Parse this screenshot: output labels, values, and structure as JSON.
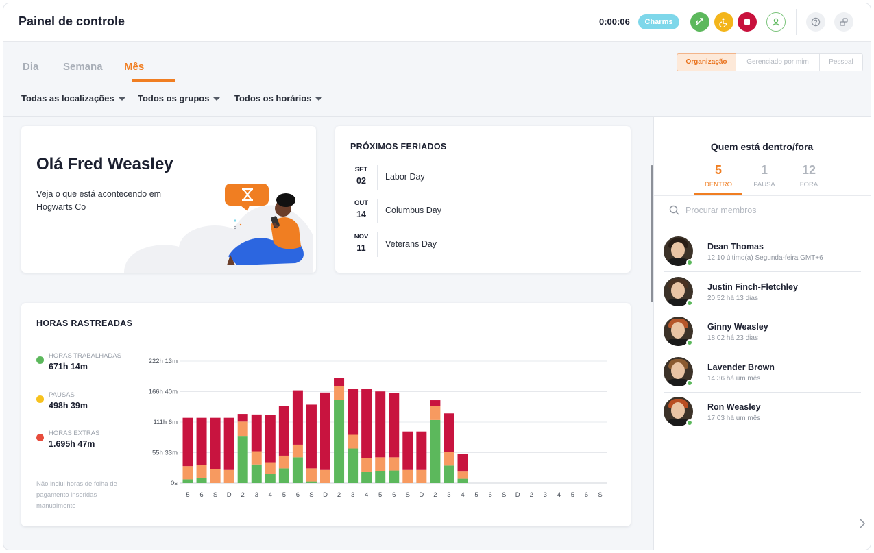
{
  "header": {
    "title": "Painel de controle",
    "timer": "0:00:06",
    "badge": "Charms"
  },
  "tabs": [
    {
      "label": "Dia"
    },
    {
      "label": "Semana"
    },
    {
      "label": "Mês",
      "active": true
    }
  ],
  "scope": [
    {
      "label": "Organização",
      "active": true
    },
    {
      "label": "Gerenciado por mim"
    },
    {
      "label": "Pessoal"
    }
  ],
  "filters": [
    {
      "label": "Todas as localizações"
    },
    {
      "label": "Todos os grupos"
    },
    {
      "label": "Todos os horários"
    }
  ],
  "greeting": {
    "title": "Olá Fred Weasley",
    "subtitle": "Veja o que está acontecendo em Hogwarts Co"
  },
  "holidays": {
    "title": "PRÓXIMOS FERIADOS",
    "items": [
      {
        "month": "SET",
        "day": "02",
        "name": "Labor Day"
      },
      {
        "month": "OUT",
        "day": "14",
        "name": "Columbus Day"
      },
      {
        "month": "NOV",
        "day": "11",
        "name": "Veterans Day"
      }
    ]
  },
  "hours": {
    "title": "HORAS RASTREADAS",
    "legend": [
      {
        "label": "HORAS TRABALHADAS",
        "value": "671h 14m",
        "color": "#5cb85c"
      },
      {
        "label": "PAUSAS",
        "value": "498h 39m",
        "color": "#f7c21e"
      },
      {
        "label": "HORAS EXTRAS",
        "value": "1.695h 47m",
        "color": "#e74c3c"
      }
    ],
    "note": "Não inclui horas de folha de pagamento inseridas manualmente"
  },
  "chart_data": {
    "type": "bar",
    "stacked": true,
    "categories": [
      "5",
      "6",
      "S",
      "D",
      "2",
      "3",
      "4",
      "5",
      "6",
      "S",
      "D",
      "2",
      "3",
      "4",
      "5",
      "6",
      "S",
      "D",
      "2",
      "3",
      "4",
      "5",
      "6",
      "S",
      "D",
      "2",
      "3",
      "4",
      "5",
      "6",
      "S"
    ],
    "series": [
      {
        "color": "#5cb85c",
        "values": [
          7,
          10,
          0,
          0,
          86,
          34,
          17,
          27,
          47,
          3,
          0,
          152,
          63,
          20,
          22,
          23,
          0,
          0,
          115,
          32,
          8,
          0,
          0,
          0,
          0,
          0,
          0,
          0,
          0,
          0,
          0
        ]
      },
      {
        "color": "#f79a60",
        "values": [
          24,
          23,
          25,
          24,
          26,
          24,
          21,
          23,
          23,
          24,
          24,
          25,
          25,
          25,
          25,
          24,
          24,
          24,
          25,
          25,
          13,
          0,
          0,
          0,
          0,
          0,
          0,
          0,
          0,
          0,
          0
        ]
      },
      {
        "color": "#c8143f",
        "values": [
          88,
          86,
          94,
          95,
          14,
          67,
          86,
          91,
          99,
          116,
          141,
          15,
          84,
          126,
          120,
          117,
          70,
          70,
          11,
          70,
          32,
          0,
          0,
          0,
          0,
          0,
          0,
          0,
          0,
          0,
          0
        ]
      }
    ],
    "yticks": [
      "222h 13m",
      "166h 40m",
      "111h 6m",
      "55h 33m",
      "0s"
    ],
    "ylim": [
      0,
      222.2
    ]
  },
  "presence": {
    "title": "Quem está dentro/fora",
    "stats": [
      {
        "count": "5",
        "label": "DENTRO",
        "active": true
      },
      {
        "count": "1",
        "label": "PAUSA"
      },
      {
        "count": "12",
        "label": "FORA"
      }
    ],
    "search_placeholder": "Procurar membros",
    "members": [
      {
        "name": "Dean Thomas",
        "status": "12:10 último(a) Segunda-feira GMT+6",
        "hair": "#2a1e16"
      },
      {
        "name": "Justin Finch-Fletchley",
        "status": "20:52 há 13 dias",
        "hair": "#4a3222"
      },
      {
        "name": "Ginny Weasley",
        "status": "18:02 há 23 dias",
        "hair": "#b5562a"
      },
      {
        "name": "Lavender Brown",
        "status": "14:36 há um mês",
        "hair": "#8a5a30"
      },
      {
        "name": "Ron Weasley",
        "status": "17:03 há um mês",
        "hair": "#b84e22"
      }
    ]
  }
}
